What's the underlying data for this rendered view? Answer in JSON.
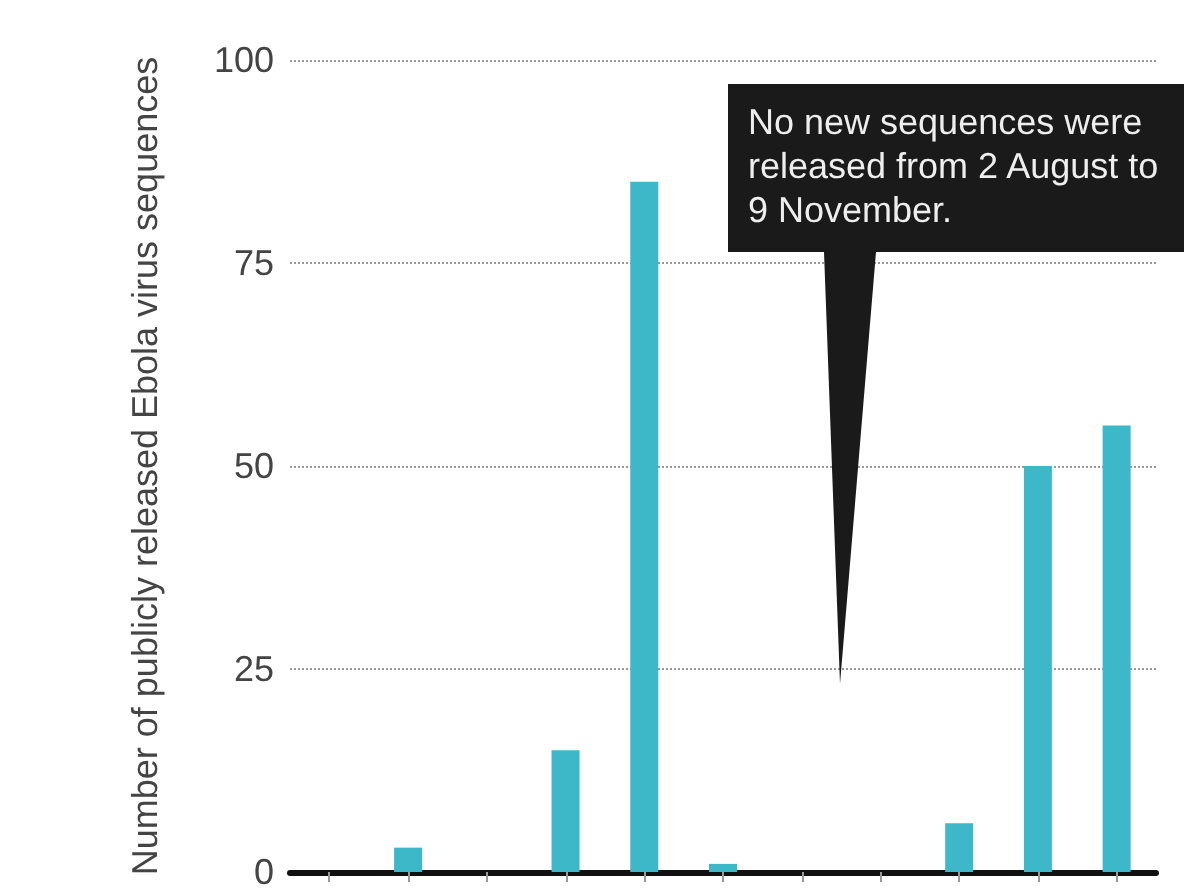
{
  "chart_data": {
    "type": "bar",
    "ylabel": "Number of publicly released Ebola virus sequences",
    "categories": [
      null,
      null,
      null,
      null,
      null,
      null,
      null,
      null,
      null,
      null,
      null
    ],
    "values": [
      0,
      3,
      0,
      15,
      85,
      1,
      0,
      0,
      6,
      50,
      55
    ],
    "color": "#3db8c8",
    "ylim": [
      0,
      100
    ],
    "yticks": [
      0,
      25,
      50,
      75,
      100
    ],
    "grid": "y",
    "annotations": [
      "No new sequences were released from 2 August to 9 November."
    ]
  }
}
